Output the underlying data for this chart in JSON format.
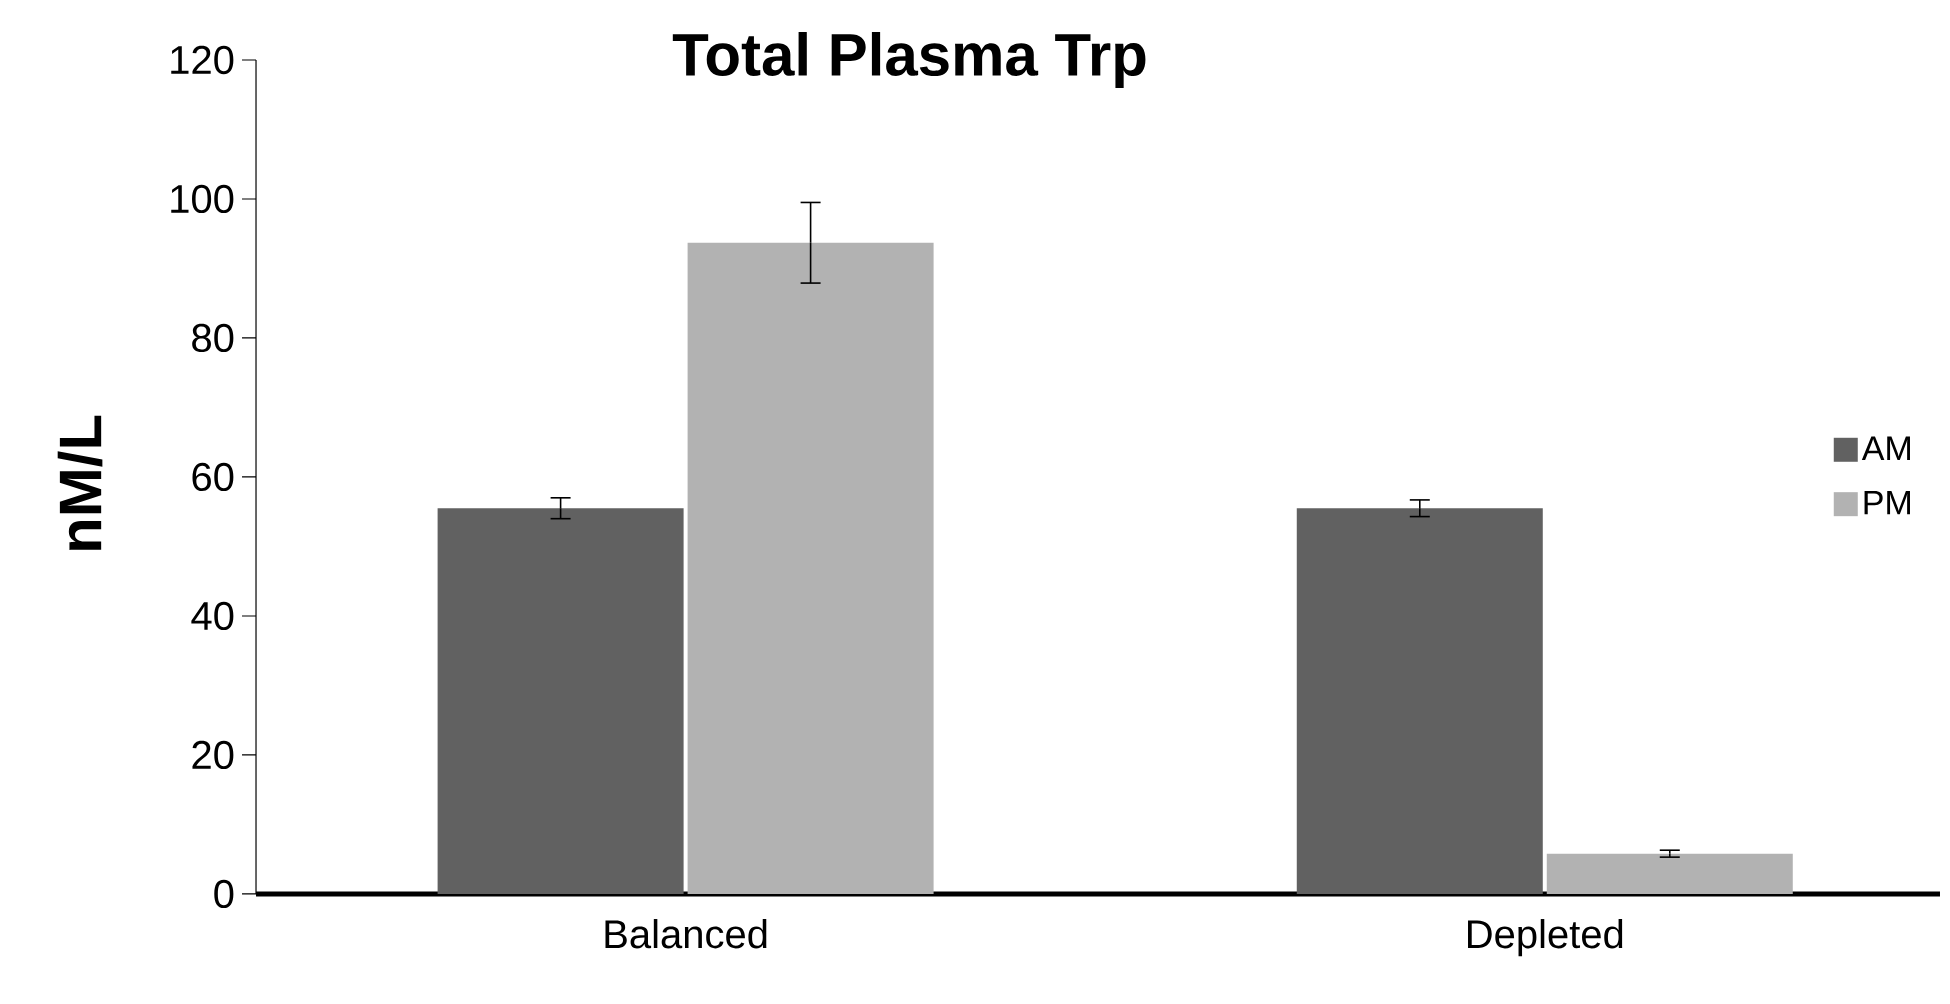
{
  "chart_data": {
    "type": "bar",
    "title": "Total Plasma Trp",
    "ylabel": "nM/L",
    "categories": [
      "Balanced",
      "Depleted"
    ],
    "series": [
      {
        "name": "AM",
        "color": "#616161",
        "values": [
          55.5,
          55.5
        ],
        "errors": [
          1.5,
          1.2
        ]
      },
      {
        "name": "PM",
        "color": "#b2b2b2",
        "values": [
          93.7,
          5.8
        ],
        "errors": [
          5.8,
          0.5
        ]
      }
    ],
    "ylim": [
      0,
      120
    ],
    "yticks": [
      0,
      20,
      40,
      60,
      80,
      100,
      120
    ],
    "grid": false,
    "legend": "right"
  }
}
